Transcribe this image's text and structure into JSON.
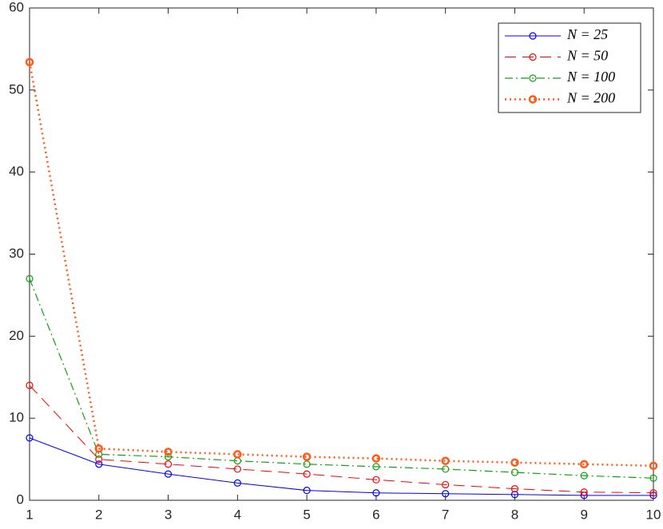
{
  "chart_data": {
    "type": "line",
    "x": [
      1,
      2,
      3,
      4,
      5,
      6,
      7,
      8,
      9,
      10
    ],
    "xlim": [
      1,
      10
    ],
    "xticks": [
      1,
      2,
      3,
      4,
      5,
      6,
      7,
      8,
      9,
      10
    ],
    "ylim": [
      0,
      60
    ],
    "yticks": [
      0,
      10,
      20,
      30,
      40,
      50,
      60
    ],
    "grid": false,
    "legend": "upper-right",
    "series": [
      {
        "name": "N = 25",
        "color": "#0000ff",
        "dash": "none",
        "width": 1,
        "values": [
          7.6,
          4.4,
          3.2,
          2.1,
          1.2,
          0.9,
          0.8,
          0.7,
          0.6,
          0.6
        ]
      },
      {
        "name": "N = 50",
        "color": "#ff0000",
        "dash": "14 8",
        "width": 1,
        "values": [
          14,
          5.0,
          4.4,
          3.8,
          3.2,
          2.5,
          1.9,
          1.4,
          1.0,
          0.9
        ]
      },
      {
        "name": "N = 100",
        "color": "#12a012",
        "dash": "10 4 2 4",
        "width": 1.2,
        "values": [
          27,
          5.6,
          5.3,
          4.8,
          4.4,
          4.1,
          3.8,
          3.4,
          3.0,
          2.7
        ]
      },
      {
        "name": "N = 200",
        "color": "#ff5a1a",
        "dash": "2 4",
        "width": 2.5,
        "values": [
          53.4,
          6.3,
          5.9,
          5.6,
          5.3,
          5.1,
          4.8,
          4.6,
          4.4,
          4.2
        ]
      }
    ]
  }
}
